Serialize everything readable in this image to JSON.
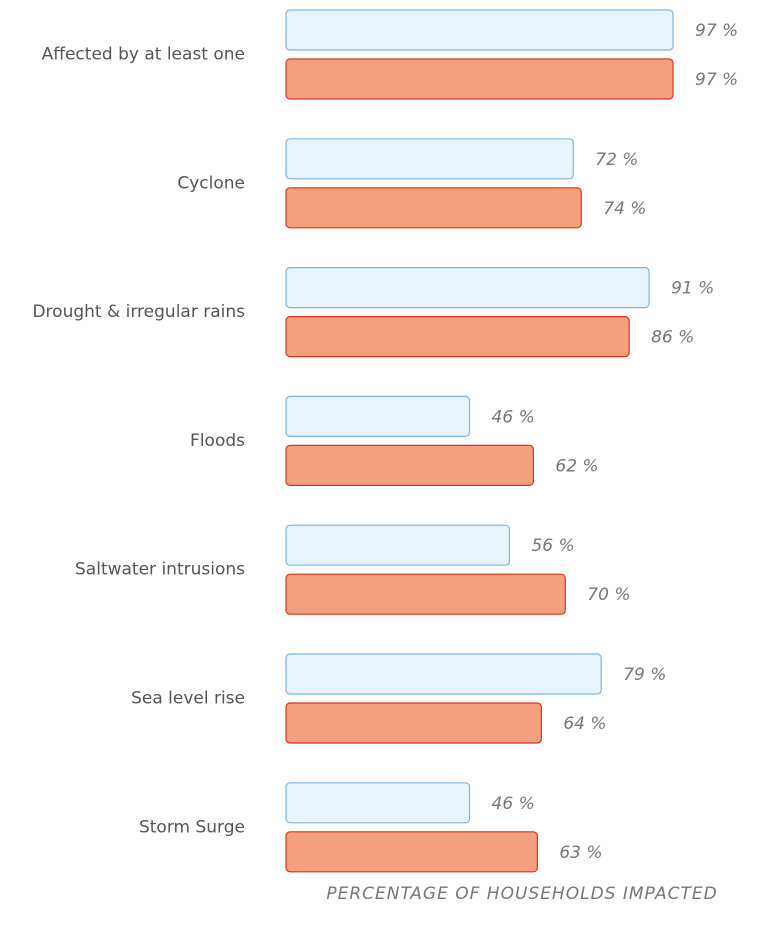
{
  "chart_data": {
    "type": "barh",
    "categories": [
      "Affected by at least one",
      "Cyclone",
      "Drought & irregular rains",
      "Floods",
      "Saltwater intrusions",
      "Sea level rise",
      "Storm Surge"
    ],
    "series": [
      {
        "color": "#e8f4fd",
        "values": [
          97,
          72,
          91,
          46,
          56,
          79,
          46
        ],
        "value_labels": [
          "97 %",
          "72 %",
          "91 %",
          "46 %",
          "56 %",
          "79 %",
          "46 %"
        ]
      },
      {
        "color": "#f4a07e",
        "values": [
          97,
          74,
          86,
          62,
          70,
          64,
          63
        ],
        "value_labels": [
          "97 %",
          "74 %",
          "86 %",
          "62 %",
          "70 %",
          "64 %",
          "63 %"
        ]
      }
    ],
    "xlabel": "PERCENTAGE OF HOUSEHOLDS IMPACTED",
    "xlim": [
      0,
      100
    ]
  }
}
